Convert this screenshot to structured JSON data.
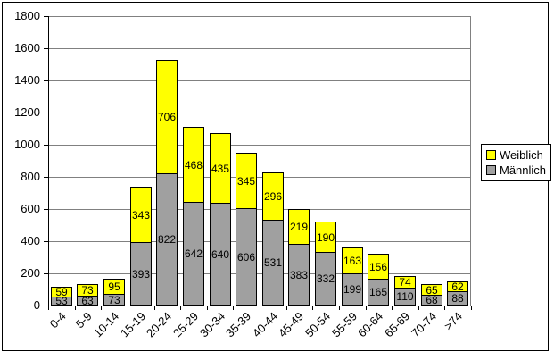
{
  "chart_data": {
    "type": "bar",
    "stacked": true,
    "title": "",
    "xlabel": "",
    "ylabel": "",
    "categories": [
      "0-4",
      "5-9",
      "10-14",
      "15-19",
      "20-24",
      "25-29",
      "30-34",
      "35-39",
      "40-44",
      "45-49",
      "50-54",
      "55-59",
      "60-64",
      "65-69",
      "70-74",
      ">74"
    ],
    "series": [
      {
        "name": "Männlich",
        "color": "#A0A0A0",
        "values": [
          53,
          63,
          73,
          393,
          822,
          642,
          640,
          606,
          531,
          383,
          332,
          199,
          165,
          110,
          68,
          88
        ]
      },
      {
        "name": "Weiblich",
        "color": "#FFFF00",
        "values": [
          59,
          73,
          95,
          343,
          706,
          468,
          435,
          345,
          296,
          219,
          190,
          163,
          156,
          74,
          65,
          62
        ]
      }
    ],
    "stack_order_bottom_to_top": [
      "Männlich",
      "Weiblich"
    ],
    "legend_order_top_to_bottom": [
      "Weiblich",
      "Männlich"
    ],
    "ylim": [
      0,
      1800
    ],
    "ytick_step": 200,
    "grid": true,
    "data_labels": true,
    "legend_position": "middle-right"
  },
  "colors": {
    "background": "#FFFFFF",
    "gridline": "#808080",
    "plot_border": "#808080",
    "axis": "#000000",
    "bar_border": "#000000",
    "text": "#000000"
  }
}
